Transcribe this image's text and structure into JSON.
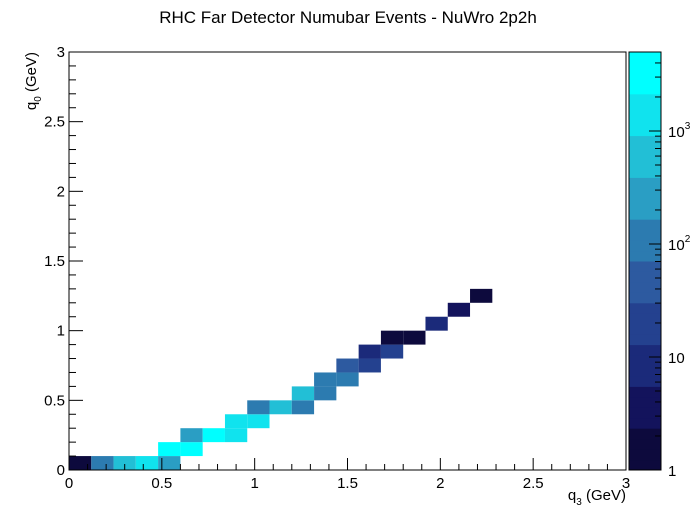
{
  "chart_data": {
    "type": "heatmap",
    "title": "RHC Far Detector Numubar Events - NuWro 2p2h",
    "xlabel": {
      "main": "q",
      "sub": "3",
      "unit": " (GeV)"
    },
    "ylabel": {
      "main": "q",
      "sub": "0",
      "unit": " (GeV)"
    },
    "xlim": [
      0,
      3
    ],
    "ylim": [
      0,
      3
    ],
    "bin_width": 0.12,
    "bin_height": 0.1,
    "x_ticks": [
      "0",
      "0.5",
      "1",
      "1.5",
      "2",
      "2.5",
      "3"
    ],
    "y_ticks": [
      "0",
      "0.5",
      "1",
      "1.5",
      "2",
      "2.5",
      "3"
    ],
    "colorbar": {
      "scale": "log",
      "zlim": [
        1,
        5000
      ],
      "tick_labels": [
        {
          "value": 1,
          "base": "1",
          "exp": ""
        },
        {
          "value": 10,
          "base": "10",
          "exp": ""
        },
        {
          "value": 100,
          "base": "10",
          "exp": "2"
        },
        {
          "value": 1000,
          "base": "10",
          "exp": "3"
        }
      ],
      "colors": [
        "#0d0a3d",
        "#13135c",
        "#1b2a7a",
        "#24418f",
        "#2d5aa0",
        "#2c7bb0",
        "#2a9ec4",
        "#22bfd6",
        "#10e3ee",
        "#00ffff"
      ]
    },
    "cells": [
      {
        "x": 0.0,
        "y": 0.0,
        "z": 1
      },
      {
        "x": 0.12,
        "y": 0.0,
        "z": 150
      },
      {
        "x": 0.24,
        "y": 0.0,
        "z": 600
      },
      {
        "x": 0.36,
        "y": 0.0,
        "z": 1500
      },
      {
        "x": 0.48,
        "y": 0.0,
        "z": 180
      },
      {
        "x": 0.48,
        "y": 0.1,
        "z": 4500
      },
      {
        "x": 0.6,
        "y": 0.1,
        "z": 4500
      },
      {
        "x": 0.6,
        "y": 0.2,
        "z": 300
      },
      {
        "x": 0.72,
        "y": 0.2,
        "z": 4500
      },
      {
        "x": 0.84,
        "y": 0.2,
        "z": 1500
      },
      {
        "x": 0.84,
        "y": 0.3,
        "z": 1500
      },
      {
        "x": 0.96,
        "y": 0.3,
        "z": 1500
      },
      {
        "x": 0.96,
        "y": 0.4,
        "z": 150
      },
      {
        "x": 1.08,
        "y": 0.4,
        "z": 800
      },
      {
        "x": 1.2,
        "y": 0.4,
        "z": 100
      },
      {
        "x": 1.2,
        "y": 0.5,
        "z": 400
      },
      {
        "x": 1.32,
        "y": 0.5,
        "z": 100
      },
      {
        "x": 1.32,
        "y": 0.6,
        "z": 120
      },
      {
        "x": 1.44,
        "y": 0.6,
        "z": 80
      },
      {
        "x": 1.44,
        "y": 0.7,
        "z": 50
      },
      {
        "x": 1.56,
        "y": 0.7,
        "z": 30
      },
      {
        "x": 1.56,
        "y": 0.8,
        "z": 8
      },
      {
        "x": 1.68,
        "y": 0.8,
        "z": 25
      },
      {
        "x": 1.68,
        "y": 0.9,
        "z": 2
      },
      {
        "x": 1.8,
        "y": 0.9,
        "z": 2
      },
      {
        "x": 1.92,
        "y": 1.0,
        "z": 6
      },
      {
        "x": 2.04,
        "y": 1.1,
        "z": 3
      },
      {
        "x": 2.16,
        "y": 1.2,
        "z": 1
      }
    ],
    "grid": false
  }
}
